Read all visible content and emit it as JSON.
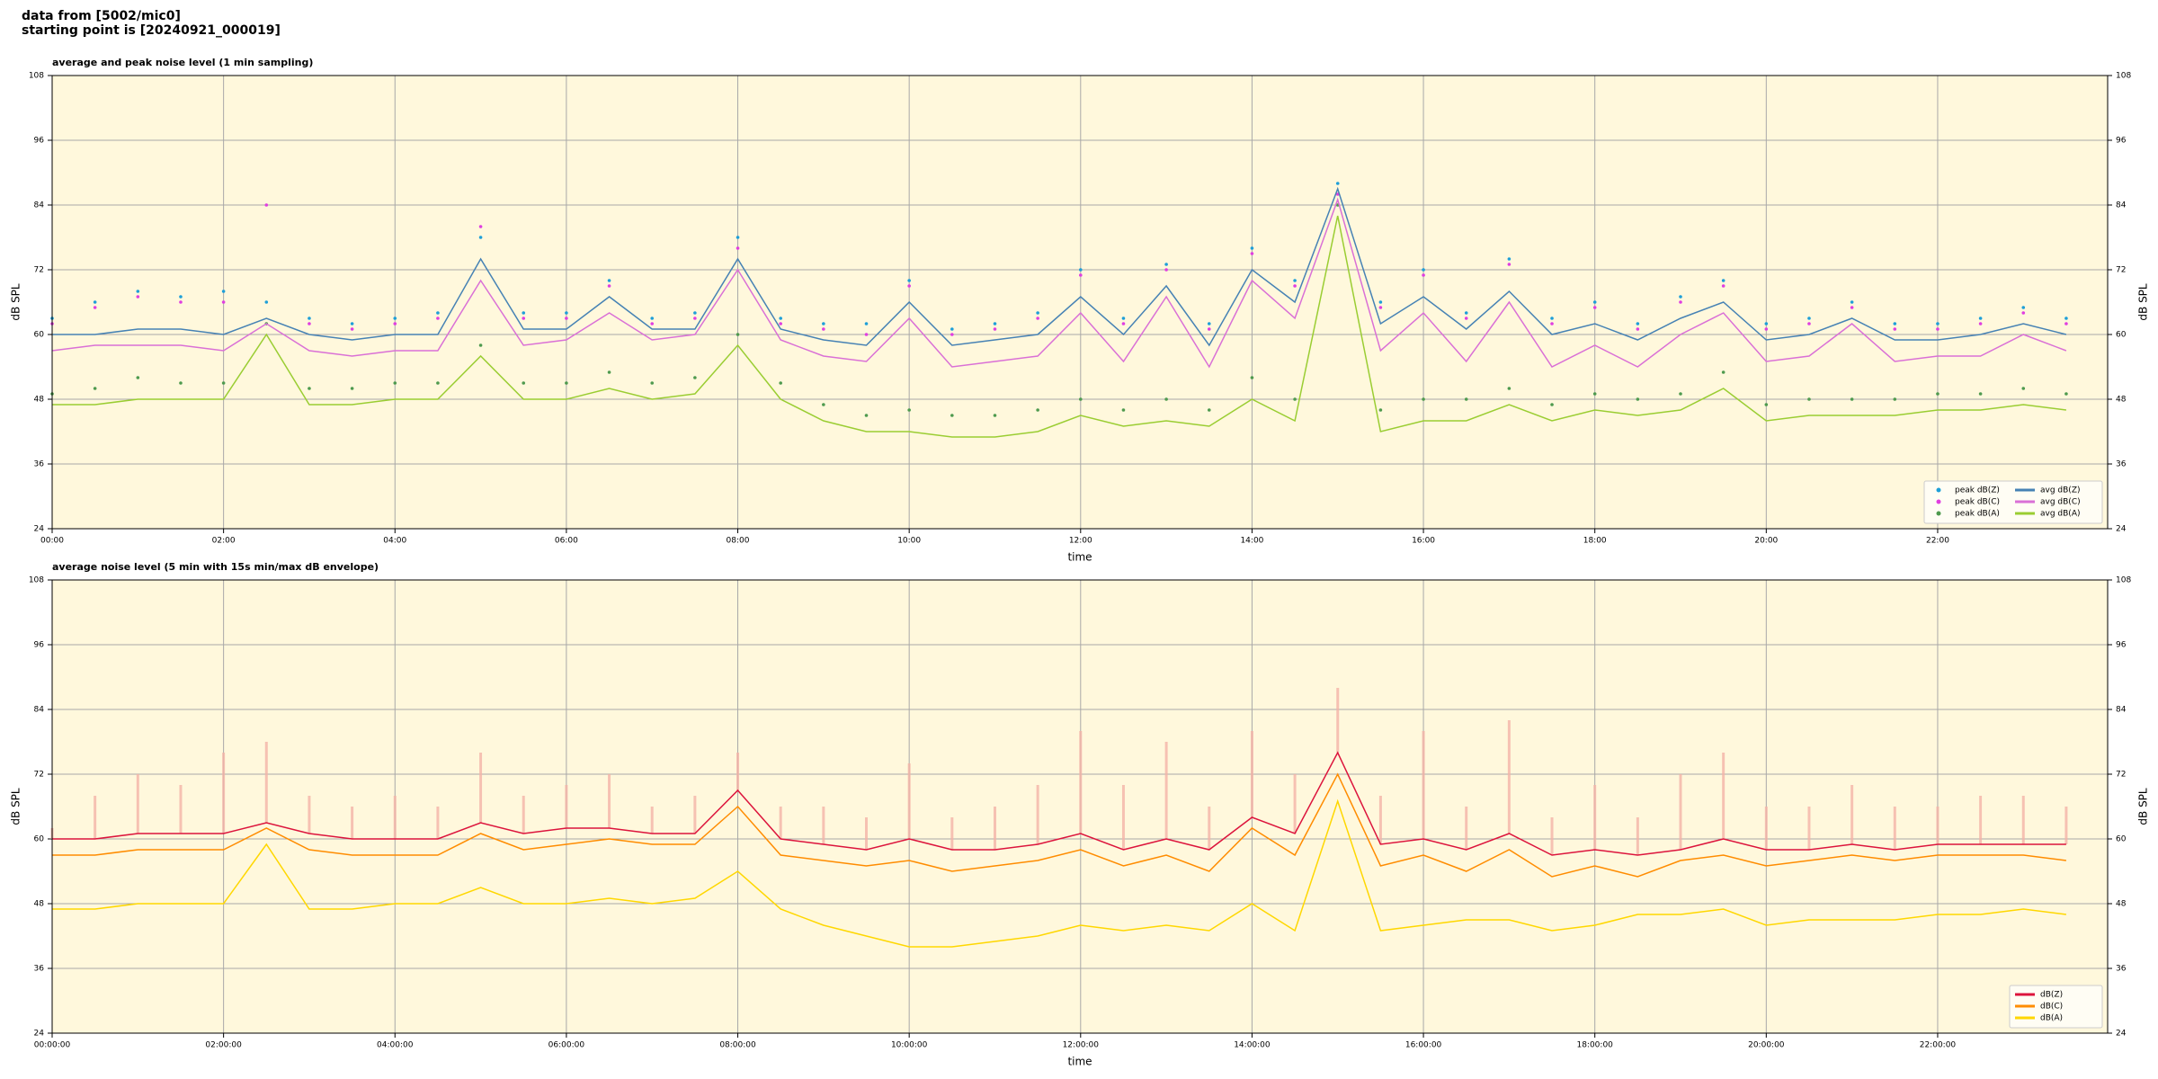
{
  "header": {
    "source": "data from [5002/mic0]",
    "start": "starting point is [20240921_000019]"
  },
  "chart_data": [
    {
      "type": "line",
      "title": "average and peak noise level (1 min sampling)",
      "xlabel": "time",
      "ylabel": "dB SPL",
      "x": [
        "00:00",
        "00:30",
        "01:00",
        "01:30",
        "02:00",
        "02:30",
        "03:00",
        "03:30",
        "04:00",
        "04:30",
        "05:00",
        "05:30",
        "06:00",
        "06:30",
        "07:00",
        "07:30",
        "08:00",
        "08:30",
        "09:00",
        "09:30",
        "10:00",
        "10:30",
        "11:00",
        "11:30",
        "12:00",
        "12:30",
        "13:00",
        "13:30",
        "14:00",
        "14:30",
        "15:00",
        "15:30",
        "16:00",
        "16:30",
        "17:00",
        "17:30",
        "18:00",
        "18:30",
        "19:00",
        "19:30",
        "20:00",
        "20:30",
        "21:00",
        "21:30",
        "22:00",
        "22:30",
        "23:00",
        "23:30"
      ],
      "xlim": [
        "00:00",
        "23:59"
      ],
      "xticks": [
        "00:00",
        "02:00",
        "04:00",
        "06:00",
        "08:00",
        "10:00",
        "12:00",
        "14:00",
        "16:00",
        "18:00",
        "20:00",
        "22:00"
      ],
      "ylim": [
        24,
        108
      ],
      "yticks": [
        24,
        36,
        48,
        60,
        72,
        84,
        96,
        108
      ],
      "grid": true,
      "legend": "lower right",
      "legend_columns": 2,
      "series": [
        {
          "name": "peak dB(Z)",
          "mode": "markers",
          "color": "#1e9fd8",
          "values": [
            63,
            66,
            68,
            67,
            68,
            66,
            63,
            62,
            63,
            64,
            78,
            64,
            64,
            70,
            63,
            64,
            78,
            63,
            62,
            62,
            70,
            61,
            62,
            64,
            72,
            63,
            73,
            62,
            76,
            70,
            88,
            66,
            72,
            64,
            74,
            63,
            66,
            62,
            67,
            70,
            62,
            63,
            66,
            62,
            62,
            63,
            65,
            63
          ]
        },
        {
          "name": "peak dB(C)",
          "mode": "markers",
          "color": "#e03ee0",
          "values": [
            62,
            65,
            67,
            66,
            66,
            84,
            62,
            61,
            62,
            63,
            80,
            63,
            63,
            69,
            62,
            63,
            76,
            62,
            61,
            60,
            69,
            60,
            61,
            63,
            71,
            62,
            72,
            61,
            75,
            69,
            86,
            65,
            71,
            63,
            73,
            62,
            65,
            61,
            66,
            69,
            61,
            62,
            65,
            61,
            61,
            62,
            64,
            62
          ]
        },
        {
          "name": "peak dB(A)",
          "mode": "markers",
          "color": "#4e9a4e",
          "values": [
            49,
            50,
            52,
            51,
            51,
            62,
            50,
            50,
            51,
            51,
            58,
            51,
            51,
            53,
            51,
            52,
            60,
            51,
            47,
            45,
            46,
            45,
            45,
            46,
            48,
            46,
            48,
            46,
            52,
            48,
            84,
            46,
            48,
            48,
            50,
            47,
            49,
            48,
            49,
            53,
            47,
            48,
            48,
            48,
            49,
            49,
            50,
            49
          ]
        },
        {
          "name": "avg dB(Z)",
          "mode": "line",
          "color": "#4682b4",
          "values": [
            60,
            60,
            61,
            61,
            60,
            63,
            60,
            59,
            60,
            60,
            74,
            61,
            61,
            67,
            61,
            61,
            74,
            61,
            59,
            58,
            66,
            58,
            59,
            60,
            67,
            60,
            69,
            58,
            72,
            66,
            87,
            62,
            67,
            61,
            68,
            60,
            62,
            59,
            63,
            66,
            59,
            60,
            63,
            59,
            59,
            60,
            62,
            60
          ]
        },
        {
          "name": "avg dB(C)",
          "mode": "line",
          "color": "#da70d6",
          "values": [
            57,
            58,
            58,
            58,
            57,
            62,
            57,
            56,
            57,
            57,
            70,
            58,
            59,
            64,
            59,
            60,
            72,
            59,
            56,
            55,
            63,
            54,
            55,
            56,
            64,
            55,
            67,
            54,
            70,
            63,
            85,
            57,
            64,
            55,
            66,
            54,
            58,
            54,
            60,
            64,
            55,
            56,
            62,
            55,
            56,
            56,
            60,
            57
          ]
        },
        {
          "name": "avg dB(A)",
          "mode": "line",
          "color": "#9acd32",
          "values": [
            47,
            47,
            48,
            48,
            48,
            60,
            47,
            47,
            48,
            48,
            56,
            48,
            48,
            50,
            48,
            49,
            58,
            48,
            44,
            42,
            42,
            41,
            41,
            42,
            45,
            43,
            44,
            43,
            48,
            44,
            82,
            42,
            44,
            44,
            47,
            44,
            46,
            45,
            46,
            50,
            44,
            45,
            45,
            45,
            46,
            46,
            47,
            46
          ]
        }
      ]
    },
    {
      "type": "line",
      "title": "average noise level (5 min with 15s min/max dB envelope)",
      "xlabel": "time",
      "ylabel": "dB SPL",
      "x": [
        "00:00:00",
        "00:30:00",
        "01:00:00",
        "01:30:00",
        "02:00:00",
        "02:30:00",
        "03:00:00",
        "03:30:00",
        "04:00:00",
        "04:30:00",
        "05:00:00",
        "05:30:00",
        "06:00:00",
        "06:30:00",
        "07:00:00",
        "07:30:00",
        "08:00:00",
        "08:30:00",
        "09:00:00",
        "09:30:00",
        "10:00:00",
        "10:30:00",
        "11:00:00",
        "11:30:00",
        "12:00:00",
        "12:30:00",
        "13:00:00",
        "13:30:00",
        "14:00:00",
        "14:30:00",
        "15:00:00",
        "15:30:00",
        "16:00:00",
        "16:30:00",
        "17:00:00",
        "17:30:00",
        "18:00:00",
        "18:30:00",
        "19:00:00",
        "19:30:00",
        "20:00:00",
        "20:30:00",
        "21:00:00",
        "21:30:00",
        "22:00:00",
        "22:30:00",
        "23:00:00",
        "23:30:00"
      ],
      "xlim": [
        "00:00:00",
        "23:59:00"
      ],
      "xticks": [
        "00:00:00",
        "02:00:00",
        "04:00:00",
        "06:00:00",
        "08:00:00",
        "10:00:00",
        "12:00:00",
        "14:00:00",
        "16:00:00",
        "18:00:00",
        "20:00:00",
        "22:00:00"
      ],
      "ylim": [
        24,
        108
      ],
      "yticks": [
        24,
        36,
        48,
        60,
        72,
        84,
        96,
        108
      ],
      "grid": true,
      "legend": "lower right",
      "legend_columns": 1,
      "series": [
        {
          "name": "dB(Z)",
          "mode": "line",
          "color": "#dc143c",
          "envelope_color": "#f4b4a8",
          "values": [
            60,
            60,
            61,
            61,
            61,
            63,
            61,
            60,
            60,
            60,
            63,
            61,
            62,
            62,
            61,
            61,
            69,
            60,
            59,
            58,
            60,
            58,
            58,
            59,
            61,
            58,
            60,
            58,
            64,
            61,
            76,
            59,
            60,
            58,
            61,
            57,
            58,
            57,
            58,
            60,
            58,
            58,
            59,
            58,
            59,
            59,
            59,
            59
          ],
          "upper": [
            62,
            68,
            72,
            70,
            76,
            78,
            68,
            66,
            68,
            66,
            76,
            68,
            70,
            72,
            66,
            68,
            76,
            66,
            66,
            64,
            74,
            64,
            66,
            70,
            80,
            70,
            78,
            66,
            80,
            72,
            88,
            68,
            80,
            66,
            82,
            64,
            70,
            64,
            72,
            76,
            66,
            66,
            70,
            66,
            66,
            68,
            68,
            66
          ]
        },
        {
          "name": "dB(C)",
          "mode": "line",
          "color": "#ff8c00",
          "values": [
            57,
            57,
            58,
            58,
            58,
            62,
            58,
            57,
            57,
            57,
            61,
            58,
            59,
            60,
            59,
            59,
            66,
            57,
            56,
            55,
            56,
            54,
            55,
            56,
            58,
            55,
            57,
            54,
            62,
            57,
            72,
            55,
            57,
            54,
            58,
            53,
            55,
            53,
            56,
            57,
            55,
            56,
            57,
            56,
            57,
            57,
            57,
            56
          ]
        },
        {
          "name": "dB(A)",
          "mode": "line",
          "color": "#ffd700",
          "values": [
            47,
            47,
            48,
            48,
            48,
            59,
            47,
            47,
            48,
            48,
            51,
            48,
            48,
            49,
            48,
            49,
            54,
            47,
            44,
            42,
            40,
            40,
            41,
            42,
            44,
            43,
            44,
            43,
            48,
            43,
            67,
            43,
            44,
            45,
            45,
            43,
            44,
            46,
            46,
            47,
            44,
            45,
            45,
            45,
            46,
            46,
            47,
            46
          ]
        }
      ]
    }
  ]
}
